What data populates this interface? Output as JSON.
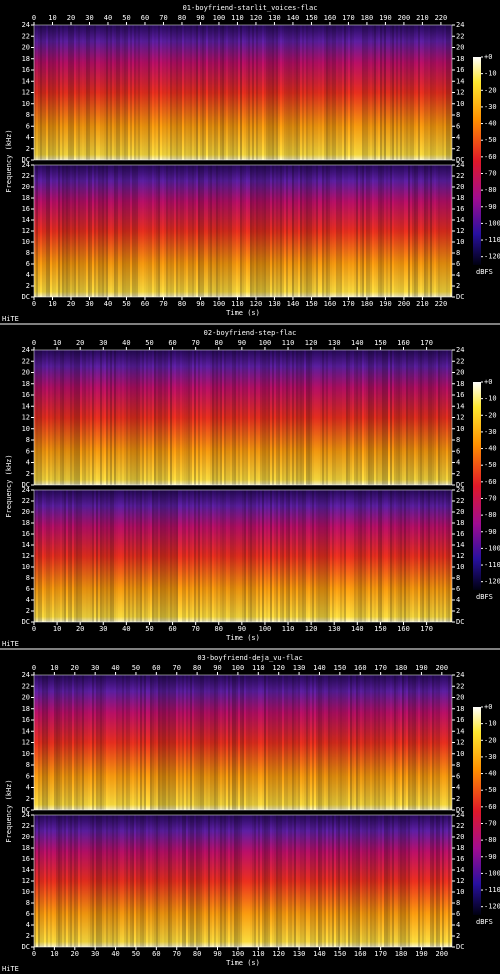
{
  "chart_data": [
    {
      "type": "spectrogram",
      "title": "01-boyfriend-starlit_voices-flac",
      "xlabel": "Time (s)",
      "ylabel": "Frequency (kHz)",
      "xlim": [
        0,
        226
      ],
      "xticks": [
        0,
        10,
        20,
        30,
        40,
        50,
        60,
        70,
        80,
        90,
        100,
        110,
        120,
        130,
        140,
        150,
        160,
        170,
        180,
        190,
        200,
        210,
        220
      ],
      "ylim": [
        0,
        24
      ],
      "yticks": [
        {
          "value": 0,
          "label": "DC"
        },
        2,
        4,
        6,
        8,
        10,
        12,
        14,
        16,
        18,
        20,
        22,
        24
      ],
      "clim": [
        -125,
        0
      ],
      "cticks": [
        {
          "value": 0,
          "label": "+0"
        },
        -10,
        -20,
        -30,
        -40,
        -50,
        -60,
        -70,
        -80,
        -90,
        -100,
        -110,
        -120
      ],
      "clabel": "dBFS",
      "watermark": "HiTE"
    },
    {
      "type": "spectrogram",
      "title": "02-boyfriend-step-flac",
      "xlabel": "Time (s)",
      "ylabel": "Frequency (kHz)",
      "xlim": [
        0,
        181
      ],
      "xticks": [
        0,
        10,
        20,
        30,
        40,
        50,
        60,
        70,
        80,
        90,
        100,
        110,
        120,
        130,
        140,
        150,
        160,
        170
      ],
      "ylim": [
        0,
        24
      ],
      "yticks": [
        {
          "value": 0,
          "label": "DC"
        },
        2,
        4,
        6,
        8,
        10,
        12,
        14,
        16,
        18,
        20,
        22,
        24
      ],
      "clim": [
        -125,
        0
      ],
      "cticks": [
        {
          "value": 0,
          "label": "+0"
        },
        -10,
        -20,
        -30,
        -40,
        -50,
        -60,
        -70,
        -80,
        -90,
        -100,
        -110,
        -120
      ],
      "clabel": "dBFS",
      "watermark": "HiTE"
    },
    {
      "type": "spectrogram",
      "title": "03-boyfriend-deja_vu-flac",
      "xlabel": "Time (s)",
      "ylabel": "Frequency (kHz)",
      "xlim": [
        0,
        205
      ],
      "xticks": [
        0,
        10,
        20,
        30,
        40,
        50,
        60,
        70,
        80,
        90,
        100,
        110,
        120,
        130,
        140,
        150,
        160,
        170,
        180,
        190,
        200
      ],
      "ylim": [
        0,
        24
      ],
      "yticks": [
        {
          "value": 0,
          "label": "DC"
        },
        2,
        4,
        6,
        8,
        10,
        12,
        14,
        16,
        18,
        20,
        22,
        24
      ],
      "clim": [
        -125,
        0
      ],
      "cticks": [
        {
          "value": 0,
          "label": "+0"
        },
        -10,
        -20,
        -30,
        -40,
        -50,
        -60,
        -70,
        -80,
        -90,
        -100,
        -110,
        -120
      ],
      "clabel": "dBFS",
      "watermark": "HiTE"
    }
  ]
}
